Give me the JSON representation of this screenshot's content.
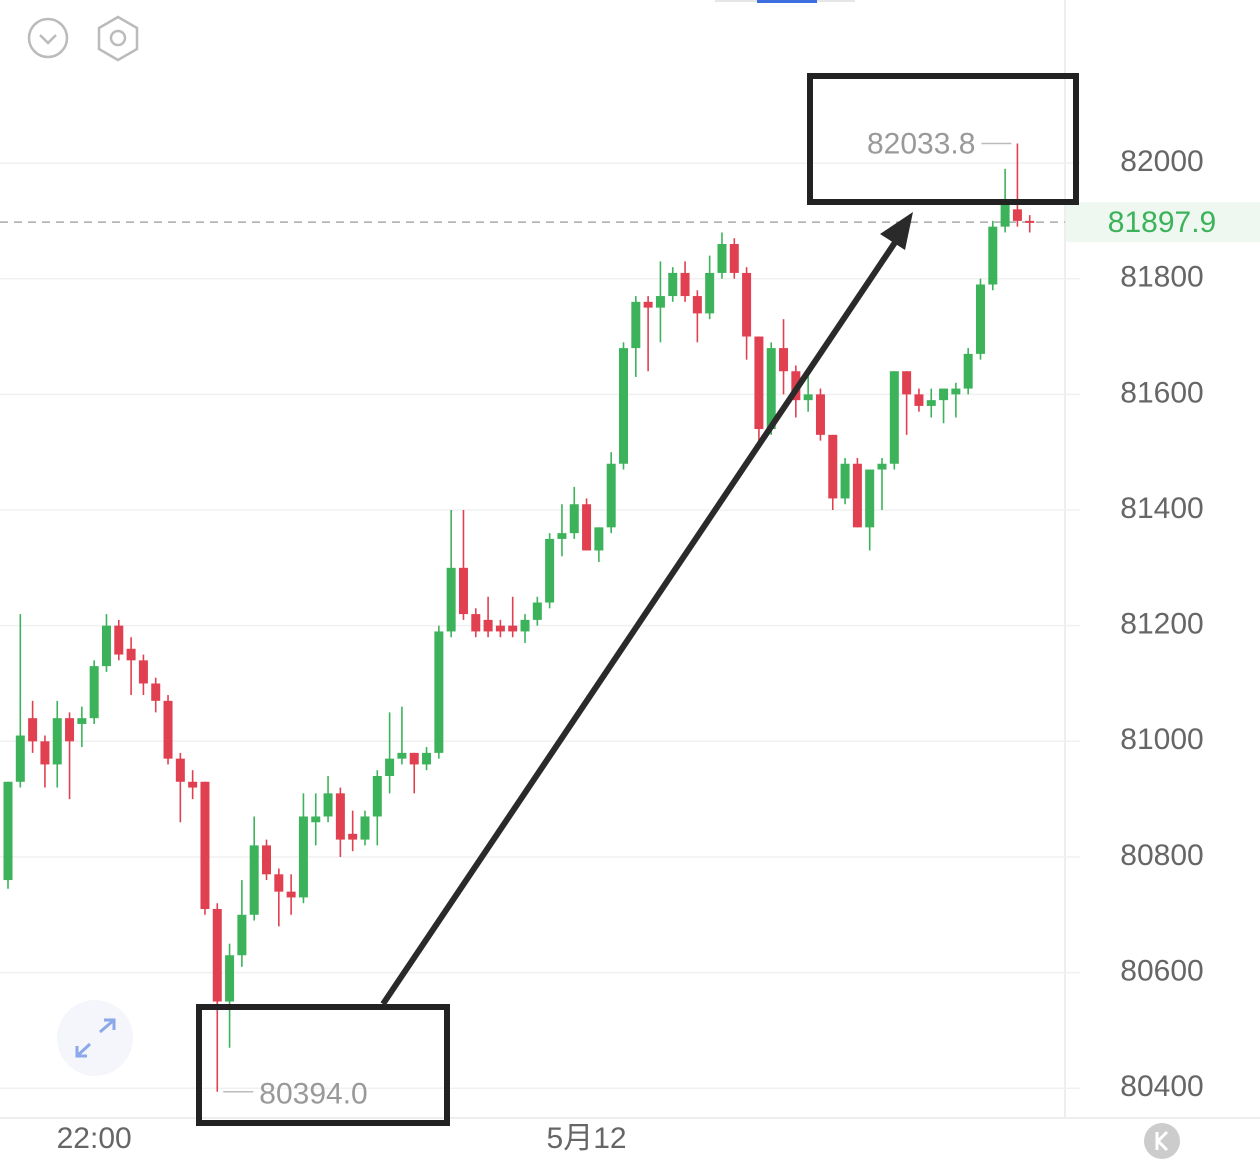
{
  "chart_data": {
    "type": "candlestick",
    "categories": [
      null,
      null,
      null,
      null,
      null,
      null,
      null,
      "22:00",
      null,
      null,
      null,
      null,
      null,
      null,
      null,
      null,
      null,
      null,
      null,
      null,
      null,
      null,
      null,
      null,
      null,
      null,
      null,
      null,
      null,
      null,
      null,
      null,
      null,
      null,
      null,
      null,
      null,
      null,
      null,
      null,
      null,
      null,
      null,
      null,
      null,
      null,
      null,
      "5月12",
      null,
      null,
      null,
      null,
      null,
      null,
      null,
      null,
      null,
      null,
      null,
      null,
      null,
      null,
      null,
      null,
      null,
      null,
      null,
      null,
      null,
      null,
      null,
      null,
      null,
      null,
      null,
      null,
      null,
      null,
      null,
      null,
      null,
      null,
      null,
      null
    ],
    "open": [
      80760,
      80930,
      81040,
      81000,
      80960,
      81040,
      81030,
      81040,
      81130,
      81200,
      81160,
      81140,
      81100,
      81070,
      80970,
      80930,
      80930,
      80710,
      80550,
      80630,
      80700,
      80820,
      80770,
      80740,
      80730,
      80860,
      80870,
      80910,
      80840,
      80830,
      80870,
      80940,
      80970,
      80980,
      80960,
      80980,
      81190,
      81300,
      81220,
      81210,
      81200,
      81200,
      81190,
      81210,
      81240,
      81350,
      81360,
      81410,
      81330,
      81370,
      81480,
      81680,
      81760,
      81750,
      81770,
      81810,
      81770,
      81740,
      81810,
      81860,
      81810,
      81700,
      81540,
      81680,
      81640,
      81590,
      81600,
      81530,
      81420,
      81480,
      81370,
      81470,
      81480,
      81640,
      81600,
      81580,
      81590,
      81600,
      81610,
      81670,
      81790,
      81890,
      81920,
      81900
    ],
    "high": [
      80930,
      81220,
      81070,
      81010,
      81070,
      81050,
      81060,
      81140,
      81220,
      81210,
      81180,
      81150,
      81110,
      81080,
      80980,
      80950,
      80930,
      80720,
      80650,
      80760,
      80870,
      80830,
      80780,
      80770,
      80910,
      80910,
      80940,
      80920,
      80880,
      80880,
      80950,
      81050,
      81060,
      80980,
      80990,
      81200,
      81400,
      81400,
      81230,
      81250,
      81210,
      81250,
      81220,
      81250,
      81360,
      81410,
      81440,
      81420,
      81370,
      81500,
      81690,
      81770,
      81770,
      81830,
      81820,
      81830,
      81780,
      81840,
      81880,
      81870,
      81820,
      81700,
      81690,
      81730,
      81650,
      81640,
      81610,
      81530,
      81490,
      81490,
      81470,
      81490,
      81640,
      81640,
      81610,
      81610,
      81610,
      81620,
      81680,
      81800,
      81900,
      81990,
      82033.8,
      81910
    ],
    "low": [
      80745,
      80920,
      80980,
      80920,
      80920,
      80900,
      80990,
      81030,
      81120,
      81140,
      81080,
      81080,
      81050,
      80960,
      80860,
      80900,
      80700,
      80394,
      80470,
      80610,
      80690,
      80760,
      80680,
      80700,
      80720,
      80820,
      80860,
      80800,
      80810,
      80820,
      80820,
      80910,
      80960,
      80910,
      80950,
      80970,
      81180,
      81210,
      81180,
      81180,
      81180,
      81180,
      81170,
      81200,
      81230,
      81320,
      81350,
      81330,
      81310,
      81360,
      81470,
      81630,
      81640,
      81690,
      81760,
      81760,
      81690,
      81730,
      81800,
      81800,
      81660,
      81520,
      81530,
      81600,
      81560,
      81570,
      81520,
      81400,
      81410,
      81370,
      81330,
      81400,
      81470,
      81530,
      81570,
      81560,
      81550,
      81560,
      81600,
      81660,
      81780,
      81880,
      81890,
      81880
    ],
    "close": [
      80930,
      81010,
      81000,
      80960,
      81040,
      81000,
      81040,
      81130,
      81200,
      81150,
      81140,
      81100,
      81070,
      80970,
      80930,
      80920,
      80710,
      80550,
      80630,
      80700,
      80820,
      80770,
      80740,
      80730,
      80870,
      80870,
      80910,
      80830,
      80830,
      80870,
      80940,
      80970,
      80980,
      80960,
      80980,
      81190,
      81300,
      81220,
      81190,
      81190,
      81190,
      81190,
      81210,
      81240,
      81350,
      81360,
      81410,
      81330,
      81370,
      81480,
      81680,
      81760,
      81750,
      81770,
      81810,
      81770,
      81740,
      81810,
      81860,
      81810,
      81700,
      81540,
      81680,
      81640,
      81590,
      81600,
      81530,
      81420,
      81480,
      81370,
      81470,
      81480,
      81640,
      81600,
      81580,
      81590,
      81610,
      81610,
      81670,
      81790,
      81890,
      81930,
      81900,
      81897.9
    ],
    "up_color": "#3cb35a",
    "down_color": "#e0404f",
    "ylim": [
      80352,
      82282
    ],
    "yticks": [
      80400,
      80600,
      80800,
      81000,
      81200,
      81400,
      81600,
      81800,
      82000
    ],
    "grid": true,
    "last_price": 81897.9,
    "annotations": [
      "82033.8",
      "80394.0"
    ]
  }
}
